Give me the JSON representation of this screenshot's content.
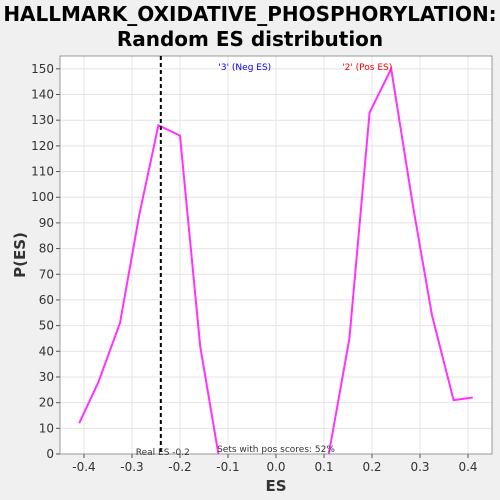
{
  "chart_data": {
    "type": "line",
    "title_line1": "HALLMARK_OXIDATIVE_PHOSPHORYLATION:",
    "title_line2": "Random ES distribution",
    "xlabel": "ES",
    "ylabel": "P(ES)",
    "xlim": [
      -0.45,
      0.45
    ],
    "ylim": [
      0,
      155
    ],
    "x_ticks": [
      "-0.4",
      "-0.3",
      "-0.2",
      "-0.1",
      "0.0",
      "0.1",
      "0.2",
      "0.3",
      "0.4"
    ],
    "y_ticks": [
      "0",
      "10",
      "20",
      "30",
      "40",
      "50",
      "60",
      "70",
      "80",
      "90",
      "100",
      "110",
      "120",
      "130",
      "140",
      "150"
    ],
    "series": [
      {
        "color": "#ff33ff",
        "segments": [
          [
            [
              -0.41,
              12
            ],
            [
              -0.37,
              28
            ],
            [
              -0.325,
              51
            ],
            [
              -0.285,
              93
            ],
            [
              -0.245,
              128
            ],
            [
              -0.2,
              124
            ],
            [
              -0.158,
              42
            ],
            [
              -0.12,
              0
            ]
          ],
          [
            [
              0.11,
              0
            ],
            [
              0.153,
              45
            ],
            [
              0.195,
              133
            ],
            [
              0.24,
              150
            ],
            [
              0.285,
              97
            ],
            [
              0.325,
              54
            ],
            [
              0.37,
              21
            ],
            [
              0.41,
              22
            ]
          ]
        ]
      }
    ],
    "annotations": {
      "neg_label": "'3' (Neg ES)",
      "neg_color": "#0000ff",
      "pos_label": "'2' (Pos ES)",
      "pos_color": "#ff0000",
      "real_es_label": "Real ES -0.2",
      "real_es_value": -0.24,
      "pos_scores_label": "Sets with pos scores: 52%"
    },
    "colors": {
      "plot_bg": "#ffffff",
      "page_bg": "#f0f0f0",
      "grid": "#e4e4e4"
    }
  }
}
